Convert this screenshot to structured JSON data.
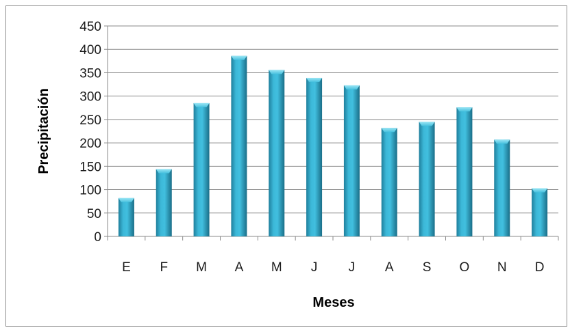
{
  "chart_data": {
    "type": "bar",
    "categories": [
      "E",
      "F",
      "M",
      "A",
      "M",
      "J",
      "J",
      "A",
      "S",
      "O",
      "N",
      "D"
    ],
    "values": [
      82,
      144,
      285,
      386,
      356,
      339,
      323,
      232,
      245,
      276,
      207,
      103
    ],
    "xlabel": "Meses",
    "ylabel": "Precipitación",
    "ylim": [
      0,
      450
    ],
    "yticks": [
      0,
      50,
      100,
      150,
      200,
      250,
      300,
      350,
      400,
      450
    ],
    "grid": true,
    "legend": "none",
    "bar_color": "#2ea6c7",
    "bar_top_color": "#7fd9ee"
  }
}
